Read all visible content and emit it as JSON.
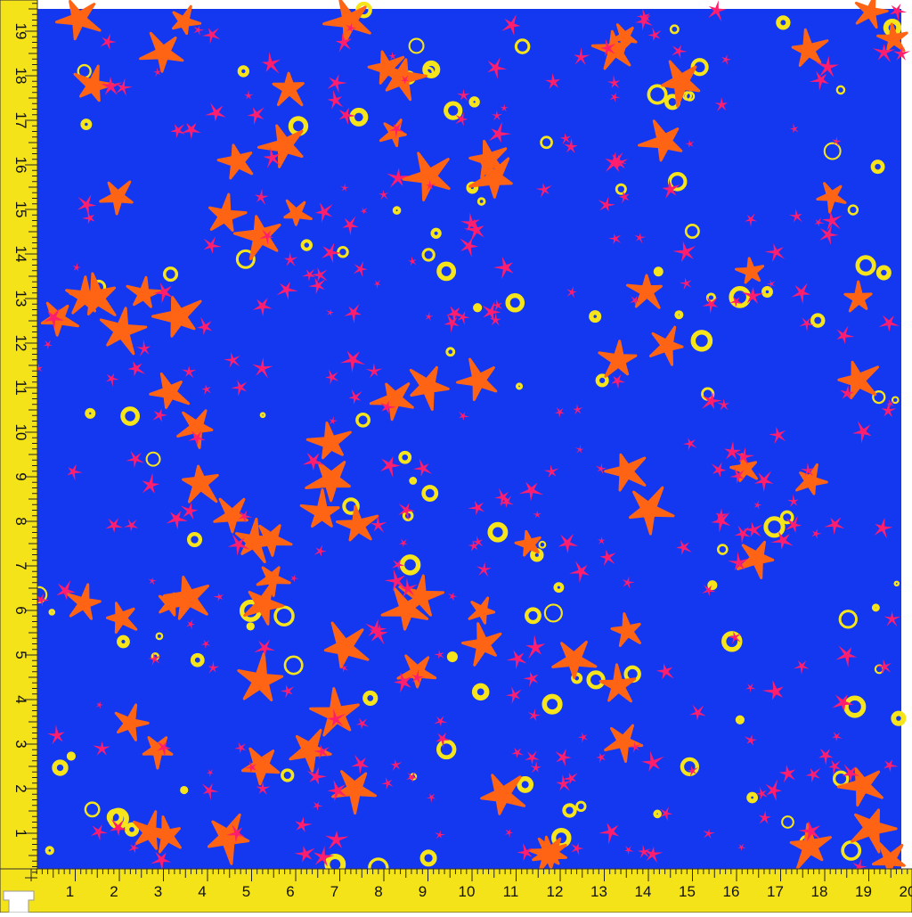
{
  "ruler": {
    "left_labels": [
      "1",
      "2",
      "3",
      "4",
      "5",
      "6",
      "7",
      "8",
      "9",
      "10",
      "11",
      "12",
      "13",
      "14",
      "15",
      "16",
      "17",
      "18",
      "19"
    ],
    "bottom_labels": [
      "1",
      "2",
      "3",
      "4",
      "5",
      "6",
      "7",
      "8",
      "9",
      "10",
      "11",
      "12",
      "13",
      "14",
      "15",
      "16",
      "17",
      "18",
      "19",
      "20"
    ]
  }
}
